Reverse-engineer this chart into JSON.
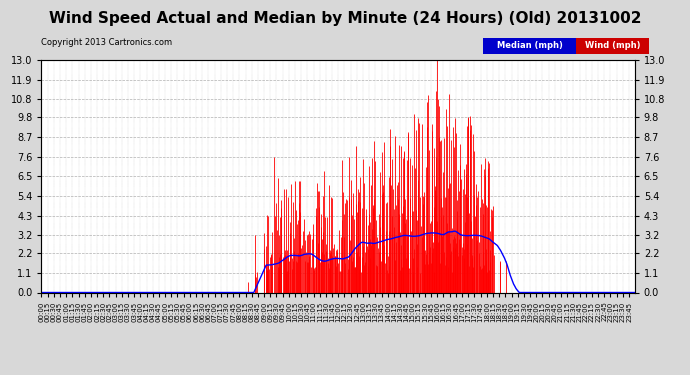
{
  "title": "Wind Speed Actual and Median by Minute (24 Hours) (Old) 20131002",
  "copyright": "Copyright 2013 Cartronics.com",
  "yticks": [
    0.0,
    1.1,
    2.2,
    3.2,
    4.3,
    5.4,
    6.5,
    7.6,
    8.7,
    9.8,
    10.8,
    11.9,
    13.0
  ],
  "ylim": [
    0.0,
    13.0
  ],
  "bg_color": "#d8d8d8",
  "plot_bg_color": "#ffffff",
  "wind_color": "#ff0000",
  "median_color": "#0000ff",
  "grid_color": "#b0b0b0",
  "title_fontsize": 11,
  "copyright_fontsize": 6,
  "legend_median_label": "Median (mph)",
  "legend_wind_label": "Wind (mph)",
  "legend_median_bg": "#0000cc",
  "legend_wind_bg": "#cc0000",
  "tick_interval_minutes": 15,
  "total_minutes": 1440
}
